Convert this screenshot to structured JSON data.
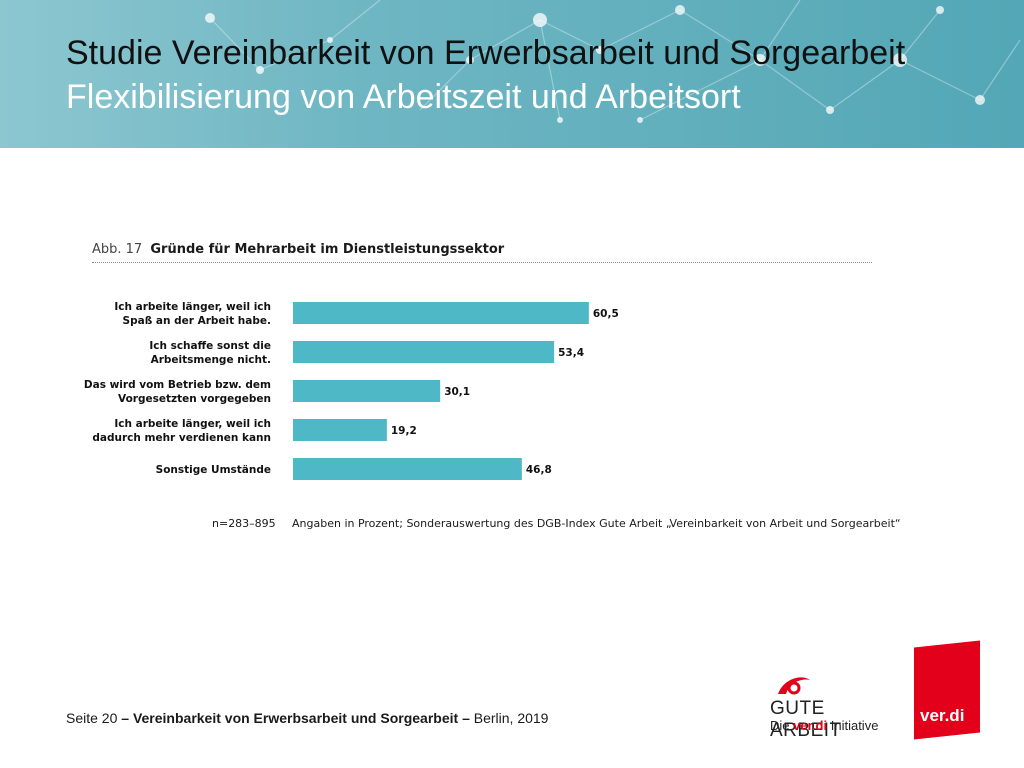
{
  "header": {
    "title_line1": "Studie Vereinbarkeit von Erwerbsarbeit und Sorgearbeit",
    "title_line2": "Flexibilisierung von Arbeitszeit und Arbeitsort"
  },
  "figure": {
    "label": "Abb. 17",
    "title": "Gründe für Mehrarbeit im Dienstleistungssektor"
  },
  "chart_data": {
    "type": "bar",
    "orientation": "horizontal",
    "title": "Gründe für Mehrarbeit im Dienstleistungssektor",
    "categories": [
      [
        "Ich arbeite länger, weil ich",
        "Spaß an der Arbeit habe."
      ],
      [
        "Ich schaffe sonst die",
        "Arbeitsmenge nicht."
      ],
      [
        "Das wird vom Betrieb bzw. dem",
        "Vorgesetzten vorgegeben"
      ],
      [
        "Ich arbeite länger, weil ich",
        "dadurch mehr verdienen kann"
      ],
      [
        "Sonstige Umstände"
      ]
    ],
    "values": [
      60.5,
      53.4,
      30.1,
      19.2,
      46.8
    ],
    "value_labels": [
      "60,5",
      "53,4",
      "30,1",
      "19,2",
      "46,8"
    ],
    "xlim": [
      0,
      100
    ],
    "bar_color": "#4fb8c7",
    "grid": false,
    "legend": "none"
  },
  "notes": {
    "n": "n=283–895",
    "source": "Angaben in Prozent; Sonderauswertung des DGB-Index Gute Arbeit „Vereinbarkeit von Arbeit und Sorgearbeit“"
  },
  "footer": {
    "page": "Seite 20",
    "sep": "–",
    "study": "Vereinbarkeit von Erwerbsarbeit und Sorgearbeit",
    "place_year": "Berlin, 2019"
  },
  "logos": {
    "gute_arbeit": "GUTE ARBEIT",
    "gute_arbeit_sub_prefix": "Die",
    "gute_arbeit_sub_brand": "ver.di",
    "gute_arbeit_sub_suffix": "Initiative",
    "verdi": "ver.di",
    "brand_red": "#e2001a"
  }
}
